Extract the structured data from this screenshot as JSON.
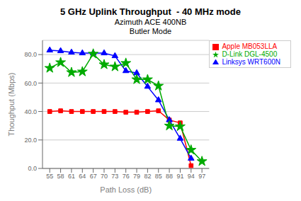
{
  "chart_data": {
    "type": "line",
    "title": "5 GHz Uplink Throughput  - 40 MHz mode",
    "subtitle": [
      "Azimuth ACE 400NB",
      "Butler Mode"
    ],
    "xlabel": "Path Loss (dB)",
    "ylabel": "Thoughput (Mbps)",
    "x": [
      55,
      58,
      61,
      64,
      67,
      70,
      73,
      76,
      79,
      82,
      85,
      88,
      91,
      94,
      97
    ],
    "series": [
      {
        "name": "Apple MB053LLA",
        "color": "#ff0000",
        "marker": "square",
        "values": [
          40.0,
          40.5,
          40.0,
          40.0,
          40.0,
          40.0,
          40.0,
          39.5,
          39.5,
          40.0,
          40.5,
          34.0,
          32.0,
          2.0,
          null
        ]
      },
      {
        "name": "Linksys WRT600N",
        "color": "#0000ff",
        "marker": "triangle",
        "values": [
          83.0,
          82.5,
          81.5,
          81.0,
          81.0,
          81.0,
          79.0,
          68.5,
          67.0,
          57.5,
          48.0,
          34.0,
          21.0,
          7.0,
          null
        ]
      },
      {
        "name": "D-Link DGL-4500",
        "color": "#00aa00",
        "marker": "star",
        "values": [
          70.5,
          74.5,
          67.5,
          68.0,
          80.5,
          73.0,
          71.5,
          74.0,
          62.5,
          62.5,
          58.0,
          30.0,
          29.5,
          13.0,
          5.0
        ]
      }
    ],
    "xlim": [
      53,
      99
    ],
    "xticks": [
      55,
      58,
      61,
      64,
      67,
      70,
      73,
      76,
      79,
      82,
      85,
      88,
      91,
      94,
      97
    ],
    "ylim": [
      0,
      90
    ],
    "yticks": [
      {
        "value": 0,
        "label": "0.0"
      },
      {
        "value": 20,
        "label": "20.0"
      },
      {
        "value": 40,
        "label": "40.0"
      },
      {
        "value": 60,
        "label": "60.0"
      },
      {
        "value": 80,
        "label": "80.0"
      }
    ],
    "grid": "y",
    "legend": "upper right"
  }
}
